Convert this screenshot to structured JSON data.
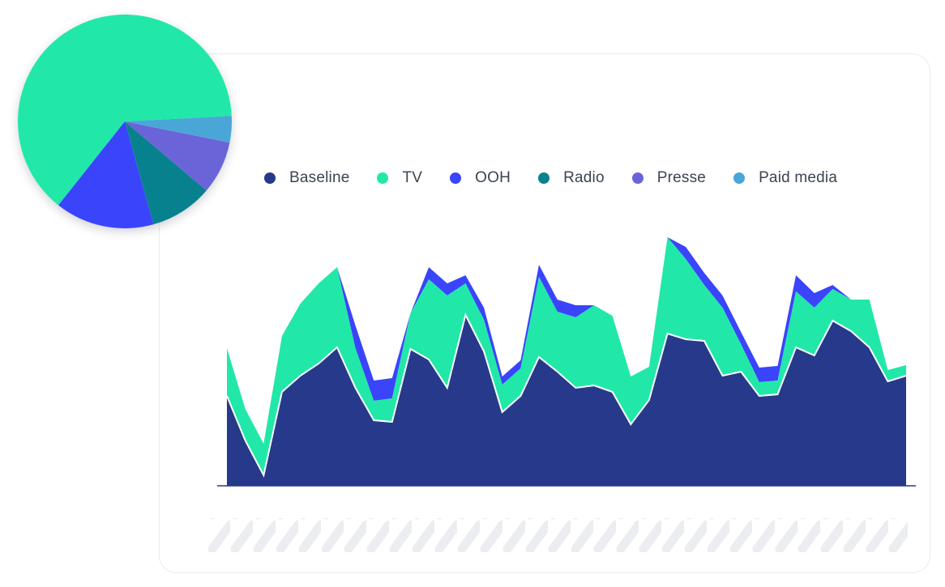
{
  "chart_data": [
    {
      "type": "area",
      "stacked": true,
      "legend_position": "top",
      "grid": false,
      "colors": {
        "Baseline": "#27398a",
        "TV": "#21e8a8",
        "OOH": "#3a44fb",
        "Radio": "#08818f",
        "Presse": "#6a64d8",
        "Paid media": "#4aa6d6"
      },
      "legend": [
        "Baseline",
        "TV",
        "OOH",
        "Radio",
        "Presse",
        "Paid media"
      ],
      "x": [
        0,
        1,
        2,
        3,
        4,
        5,
        6,
        7,
        8,
        9,
        10,
        11,
        12,
        13,
        14,
        15,
        16,
        17,
        18,
        19,
        20,
        21,
        22,
        23,
        24,
        25,
        26,
        27,
        28,
        29,
        30,
        31,
        32,
        33,
        34,
        35,
        36,
        37
      ],
      "ylim": [
        0,
        310
      ],
      "series": [
        {
          "name": "Baseline",
          "values": [
            110,
            55,
            12,
            115,
            135,
            150,
            170,
            120,
            80,
            78,
            168,
            155,
            120,
            210,
            165,
            90,
            110,
            158,
            140,
            120,
            123,
            115,
            75,
            105,
            187,
            180,
            178,
            135,
            140,
            110,
            112,
            170,
            160,
            203,
            190,
            170,
            128,
            135
          ]
        },
        {
          "name": "Radio",
          "values": [
            0,
            0,
            0,
            0,
            0,
            0,
            0,
            0,
            0,
            0,
            0,
            0,
            0,
            0,
            0,
            0,
            0,
            0,
            0,
            0,
            0,
            0,
            0,
            0,
            0,
            0,
            0,
            0,
            0,
            0,
            0,
            0,
            0,
            0,
            0,
            0,
            0,
            0
          ]
        },
        {
          "name": "Presse",
          "values": [
            0,
            0,
            0,
            0,
            0,
            0,
            0,
            0,
            0,
            0,
            0,
            0,
            0,
            0,
            0,
            0,
            0,
            0,
            0,
            0,
            0,
            0,
            0,
            0,
            0,
            0,
            0,
            0,
            0,
            0,
            0,
            0,
            0,
            0,
            0,
            0,
            0,
            0
          ]
        },
        {
          "name": "Paid media",
          "values": [
            0,
            0,
            0,
            0,
            0,
            0,
            0,
            0,
            0,
            0,
            0,
            0,
            0,
            0,
            0,
            0,
            0,
            0,
            0,
            0,
            0,
            0,
            0,
            0,
            0,
            0,
            0,
            0,
            0,
            0,
            0,
            0,
            0,
            0,
            0,
            0,
            0,
            0
          ]
        },
        {
          "name": "TV",
          "values": [
            60,
            40,
            40,
            70,
            90,
            100,
            100,
            50,
            25,
            30,
            45,
            100,
            115,
            40,
            40,
            35,
            35,
            100,
            75,
            88,
            100,
            95,
            60,
            42,
            120,
            100,
            70,
            85,
            35,
            18,
            18,
            70,
            60,
            40,
            40,
            60,
            15,
            14
          ]
        },
        {
          "name": "OOH",
          "values": [
            0,
            0,
            0,
            0,
            0,
            0,
            0,
            28,
            25,
            25,
            0,
            15,
            15,
            10,
            15,
            10,
            10,
            15,
            15,
            15,
            0,
            0,
            0,
            0,
            0,
            15,
            15,
            15,
            15,
            18,
            18,
            20,
            18,
            5,
            0,
            0,
            0,
            0
          ]
        }
      ]
    },
    {
      "type": "pie",
      "labels": [
        "TV",
        "OOH",
        "Radio",
        "Presse",
        "Paid media"
      ],
      "values": [
        63.5,
        15.0,
        9.5,
        8.0,
        4.0
      ],
      "colors": [
        "#21e8a8",
        "#3a44fb",
        "#08818f",
        "#6a64d8",
        "#4aa6d6"
      ]
    }
  ]
}
